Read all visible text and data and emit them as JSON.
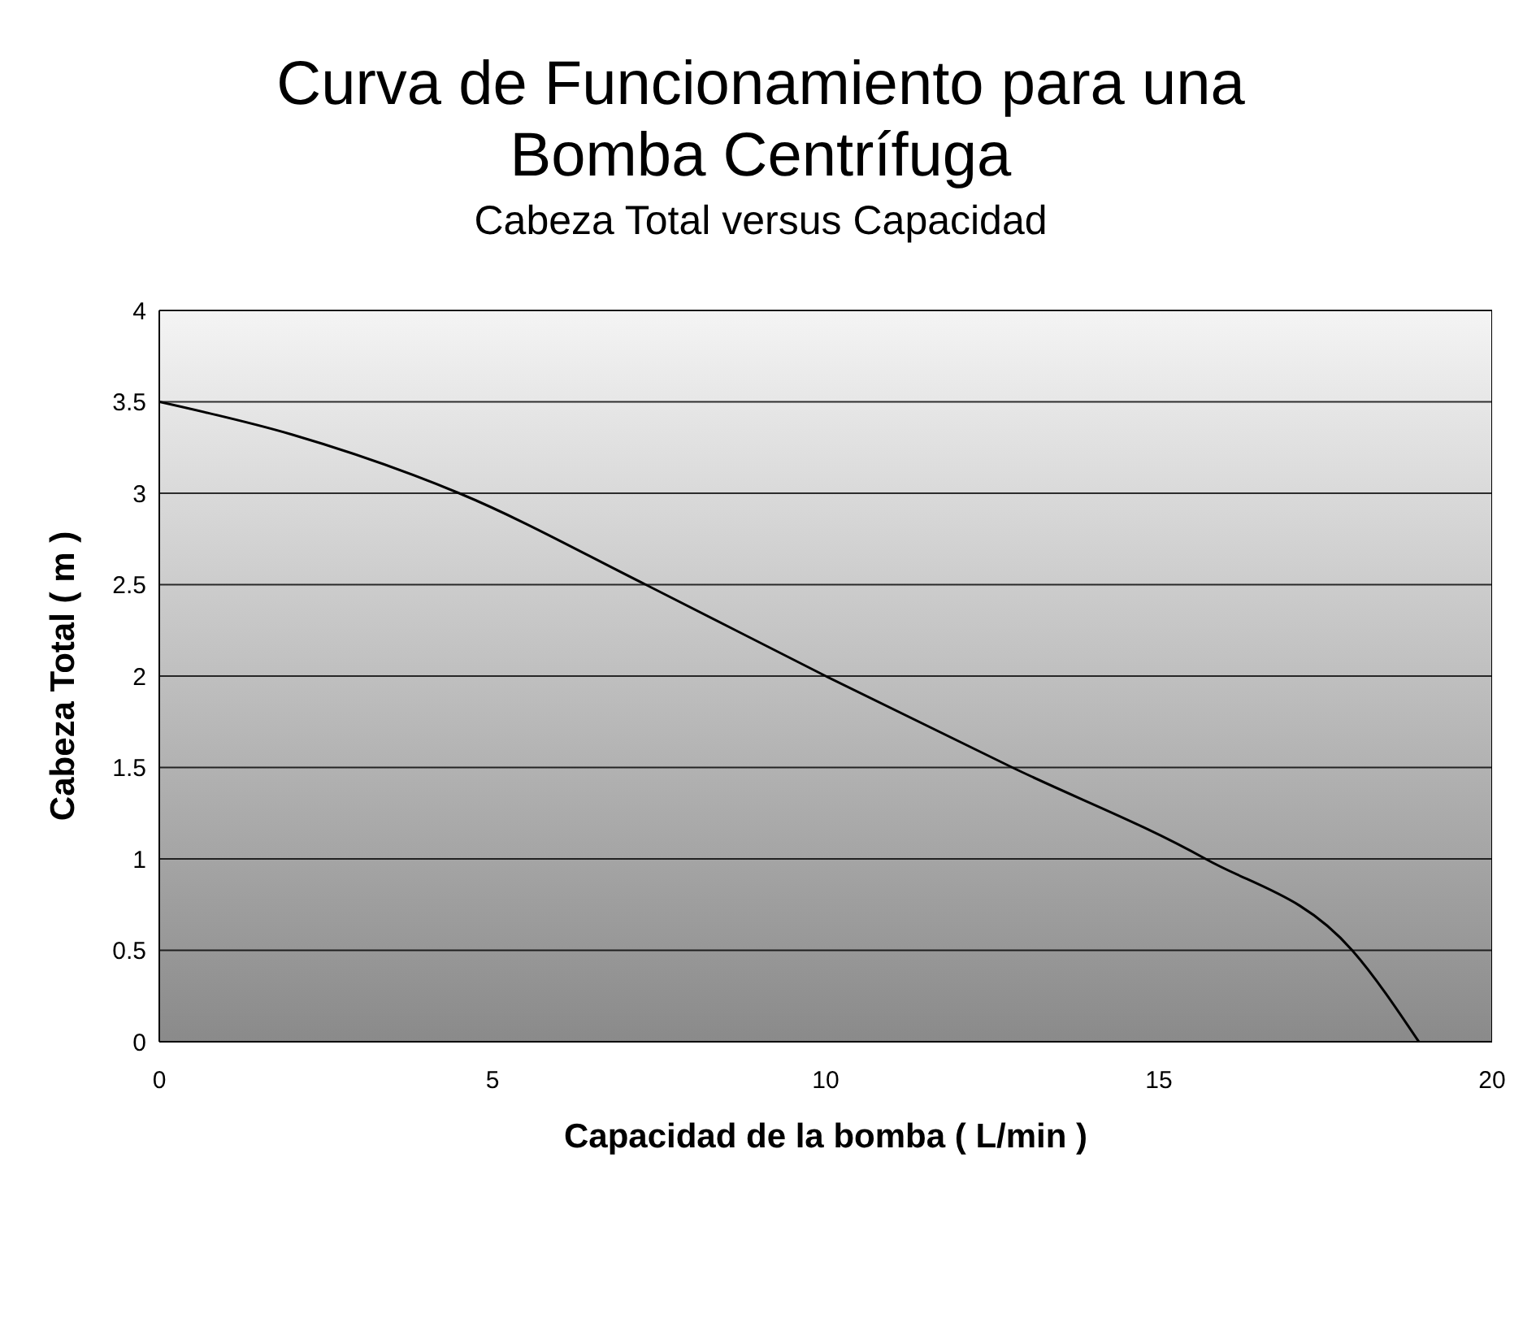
{
  "chart_data": {
    "type": "line",
    "title": "Curva de Funcionamiento para una Bomba Centrífuga",
    "subtitle": "Cabeza Total versus Capacidad",
    "xlabel": "Capacidad de la bomba ( L/min )",
    "ylabel": "Cabeza Total ( m )",
    "x": [
      0,
      2,
      4.5,
      7.3,
      10,
      12.8,
      15.7,
      17.9,
      18.9
    ],
    "series": [
      {
        "color": "#000000",
        "values": [
          3.5,
          3.32,
          3,
          2.5,
          2,
          1.5,
          1,
          0.5,
          0
        ]
      }
    ],
    "xlim": [
      0,
      20
    ],
    "xticks": [
      0,
      5,
      10,
      15,
      20
    ],
    "ylim": [
      0,
      4
    ],
    "yticks": [
      0,
      0.5,
      1,
      1.5,
      2,
      2.5,
      3,
      3.5,
      4
    ],
    "grid": "y",
    "legend": false,
    "marker": "none",
    "line_style": "solid"
  }
}
